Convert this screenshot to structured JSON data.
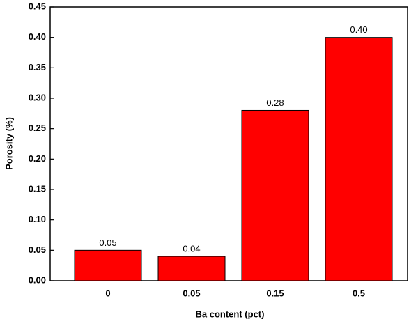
{
  "chart_data": {
    "type": "bar",
    "x_label": "Ba content (pct)",
    "y_label": "Porosity (%)",
    "categories": [
      "0",
      "0.05",
      "0.15",
      "0.5"
    ],
    "values": [
      0.05,
      0.04,
      0.28,
      0.4
    ],
    "value_labels": [
      "0.05",
      "0.04",
      "0.28",
      "0.40"
    ],
    "color": "#ff0000",
    "ylim": [
      0,
      0.45
    ],
    "yticks": [
      {
        "value": 0,
        "label": "0.00"
      },
      {
        "value": 0.05,
        "label": "0.05"
      },
      {
        "value": 0.1,
        "label": "0.10"
      },
      {
        "value": 0.15,
        "label": "0.15"
      },
      {
        "value": 0.2,
        "label": "0.20"
      },
      {
        "value": 0.25,
        "label": "0.25"
      },
      {
        "value": 0.3,
        "label": "0.30"
      },
      {
        "value": 0.35,
        "label": "0.35"
      },
      {
        "value": 0.4,
        "label": "0.40"
      },
      {
        "value": 0.45,
        "label": "0.45"
      }
    ]
  }
}
